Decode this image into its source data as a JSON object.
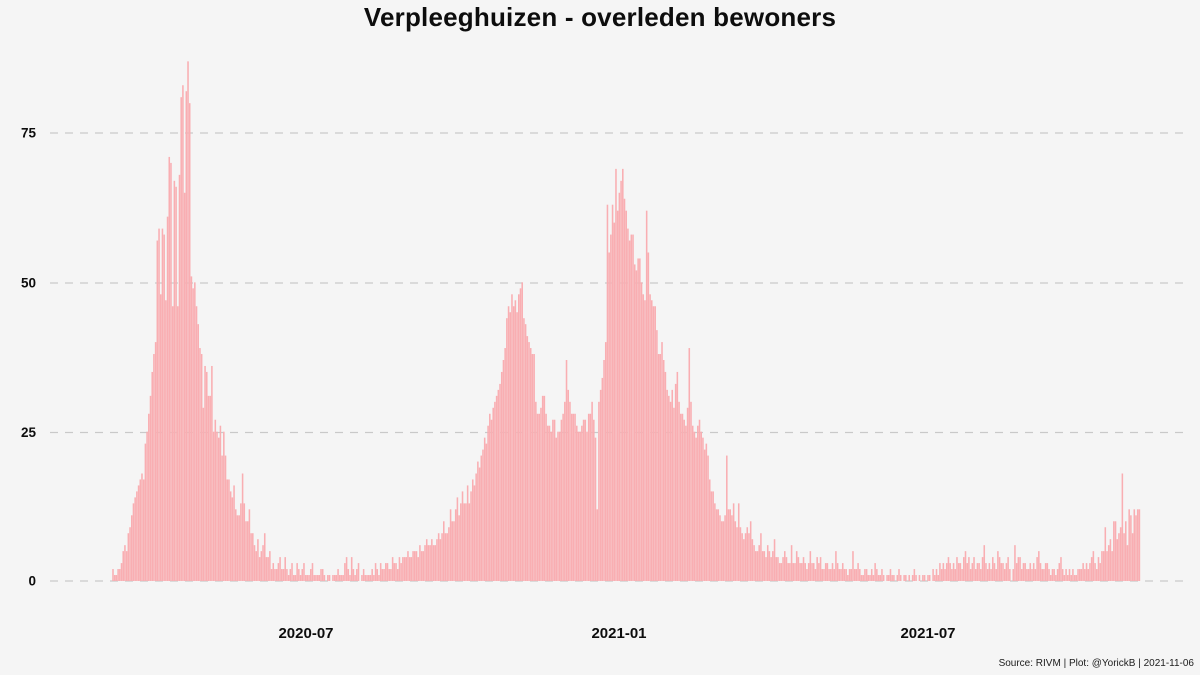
{
  "header": {
    "title": "Verpleeghuizen - overleden bewoners"
  },
  "footer": {
    "source": "Source: RIVM | Plot: @YorickB |  2021-11-06"
  },
  "chart_data": {
    "type": "bar",
    "title": "Verpleeghuizen - overleden bewoners",
    "xlabel": "",
    "ylabel": "",
    "x_unit": "day",
    "x_start_date": "2020-03-10",
    "x_end_date": "2021-11-02",
    "xtick_labels": [
      "2020-07",
      "2021-01",
      "2021-07"
    ],
    "xtick_day_index": [
      113,
      297,
      478
    ],
    "ytick_labels": [
      "0",
      "25",
      "50",
      "75"
    ],
    "ylim": [
      0,
      88
    ],
    "grid": "horizontal dashed",
    "legend": "none",
    "bar_color": "#f9aeb2",
    "background_color": "#f5f5f5",
    "gridline_color": "#c9c9c9",
    "values": [
      2,
      1,
      1,
      2,
      2,
      3,
      5,
      6,
      5,
      8,
      9,
      11,
      13,
      14,
      15,
      16,
      17,
      18,
      17,
      23,
      25,
      28,
      31,
      35,
      38,
      40,
      57,
      59,
      48,
      59,
      58,
      47,
      61,
      71,
      70,
      46,
      67,
      66,
      46,
      68,
      81,
      83,
      65,
      82,
      87,
      80,
      51,
      49,
      50,
      46,
      43,
      39,
      38,
      29,
      36,
      35,
      31,
      31,
      36,
      25,
      27,
      25,
      24,
      26,
      21,
      25,
      21,
      17,
      17,
      15,
      14,
      16,
      12,
      11,
      11,
      13,
      18,
      13,
      10,
      10,
      12,
      8,
      8,
      6,
      5,
      7,
      4,
      5,
      6,
      8,
      4,
      4,
      5,
      2,
      3,
      2,
      2,
      3,
      4,
      2,
      2,
      4,
      2,
      1,
      2,
      3,
      1,
      1,
      3,
      2,
      1,
      2,
      3,
      1,
      1,
      1,
      2,
      3,
      1,
      1,
      1,
      1,
      2,
      2,
      1,
      0,
      1,
      1,
      0,
      1,
      1,
      1,
      2,
      1,
      1,
      1,
      3,
      4,
      2,
      1,
      4,
      2,
      1,
      2,
      3,
      0,
      1,
      2,
      1,
      1,
      1,
      1,
      2,
      1,
      3,
      2,
      1,
      3,
      2,
      2,
      3,
      3,
      2,
      2,
      4,
      3,
      3,
      2,
      4,
      3,
      4,
      4,
      4,
      5,
      4,
      4,
      5,
      5,
      5,
      4,
      6,
      5,
      5,
      6,
      7,
      6,
      6,
      7,
      6,
      6,
      7,
      8,
      7,
      8,
      10,
      8,
      8,
      9,
      12,
      10,
      10,
      12,
      14,
      11,
      13,
      15,
      13,
      13,
      16,
      13,
      15,
      17,
      16,
      18,
      20,
      19,
      21,
      22,
      24,
      23,
      26,
      28,
      27,
      29,
      30,
      31,
      32,
      33,
      35,
      37,
      39,
      44,
      46,
      45,
      48,
      46,
      47,
      45,
      48,
      49,
      50,
      44,
      43,
      41,
      40,
      39,
      38,
      38,
      30,
      28,
      28,
      29,
      31,
      31,
      28,
      26,
      26,
      25,
      27,
      27,
      24,
      25,
      25,
      27,
      28,
      30,
      37,
      32,
      30,
      28,
      28,
      28,
      26,
      25,
      25,
      26,
      27,
      27,
      25,
      28,
      28,
      30,
      27,
      24,
      12,
      30,
      32,
      34,
      37,
      40,
      63,
      55,
      58,
      63,
      60,
      69,
      62,
      65,
      67,
      69,
      64,
      62,
      59,
      57,
      58,
      58,
      53,
      52,
      54,
      54,
      50,
      48,
      47,
      62,
      55,
      48,
      47,
      46,
      46,
      42,
      38,
      38,
      40,
      37,
      35,
      32,
      31,
      30,
      32,
      29,
      33,
      35,
      30,
      28,
      28,
      27,
      26,
      29,
      39,
      30,
      26,
      25,
      24,
      26,
      27,
      25,
      24,
      22,
      23,
      21,
      17,
      15,
      15,
      13,
      12,
      12,
      11,
      10,
      10,
      11,
      21,
      12,
      12,
      11,
      13,
      10,
      9,
      13,
      9,
      8,
      7,
      8,
      9,
      8,
      10,
      7,
      6,
      5,
      5,
      6,
      8,
      5,
      5,
      4,
      6,
      5,
      4,
      5,
      7,
      4,
      4,
      3,
      3,
      4,
      5,
      4,
      3,
      3,
      6,
      3,
      3,
      5,
      4,
      3,
      3,
      4,
      3,
      2,
      3,
      5,
      3,
      3,
      2,
      4,
      3,
      4,
      2,
      2,
      3,
      3,
      2,
      2,
      3,
      2,
      5,
      3,
      2,
      2,
      3,
      2,
      2,
      1,
      2,
      2,
      5,
      2,
      2,
      3,
      2,
      1,
      1,
      2,
      2,
      1,
      1,
      2,
      1,
      3,
      2,
      1,
      1,
      2,
      1,
      0,
      1,
      1,
      2,
      1,
      1,
      0,
      1,
      2,
      1,
      0,
      1,
      1,
      0,
      1,
      0,
      1,
      2,
      1,
      0,
      1,
      0,
      1,
      1,
      0,
      1,
      1,
      0,
      2,
      1,
      2,
      1,
      3,
      2,
      3,
      2,
      3,
      4,
      3,
      2,
      3,
      2,
      4,
      3,
      3,
      2,
      4,
      5,
      3,
      4,
      2,
      3,
      4,
      2,
      3,
      3,
      2,
      4,
      6,
      3,
      2,
      3,
      2,
      4,
      3,
      2,
      5,
      4,
      3,
      3,
      2,
      3,
      4,
      2,
      0,
      2,
      6,
      3,
      4,
      4,
      2,
      3,
      3,
      2,
      2,
      3,
      2,
      3,
      2,
      4,
      5,
      3,
      2,
      2,
      3,
      3,
      2,
      1,
      2,
      2,
      1,
      2,
      3,
      4,
      2,
      1,
      2,
      1,
      2,
      1,
      2,
      1,
      1,
      2,
      2,
      2,
      3,
      2,
      3,
      2,
      3,
      4,
      5,
      3,
      2,
      4,
      3,
      5,
      5,
      9,
      5,
      6,
      7,
      5,
      10,
      10,
      7,
      8,
      9,
      18,
      8,
      10,
      6,
      12,
      11,
      8,
      12,
      11,
      12,
      12
    ]
  }
}
